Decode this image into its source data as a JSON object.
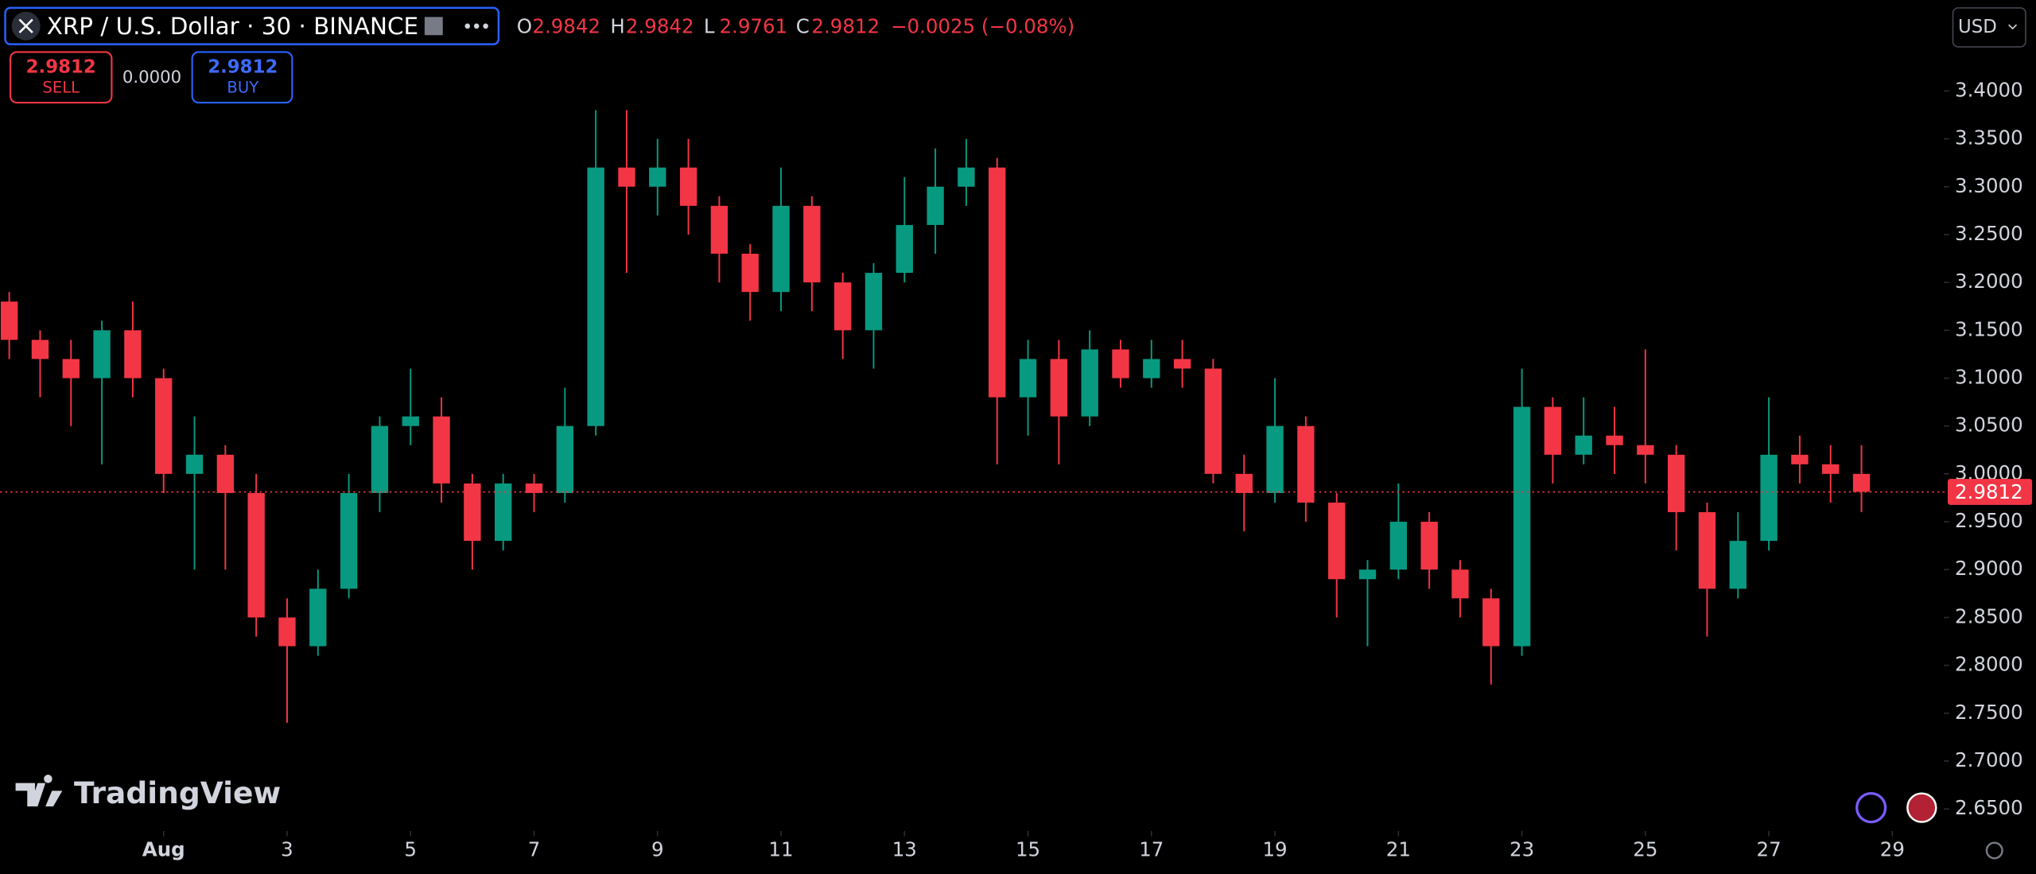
{
  "header": {
    "symbol": "XRP / U.S. Dollar · 30 · BINANCE",
    "ohlc": [
      {
        "label": "O",
        "value": "2.9842"
      },
      {
        "label": "H",
        "value": "2.9842"
      },
      {
        "label": "L",
        "value": "2.9761"
      },
      {
        "label": "C",
        "value": "2.9812"
      }
    ],
    "change": "−0.0025 (−0.08%)",
    "currency": "USD"
  },
  "trade_panel": {
    "sell_price": "2.9812",
    "sell_label": "SELL",
    "spread": "0.0000",
    "buy_price": "2.9812",
    "buy_label": "BUY"
  },
  "branding": "TradingView",
  "chart_data": {
    "type": "candlestick",
    "x": [
      -1.5,
      -1,
      -0.5,
      0,
      0.5,
      1,
      1.5,
      2,
      2.5,
      3,
      3.5,
      4,
      4.5,
      5,
      5.5,
      6,
      6.5,
      7,
      7.5,
      8,
      8.5,
      9,
      9.5,
      10,
      10.5,
      11,
      11.5,
      12,
      12.5,
      13,
      13.5,
      14,
      14.5,
      15,
      15.5,
      16,
      16.5,
      17,
      17.5,
      18,
      18.5,
      19,
      19.5,
      20,
      20.5,
      21,
      21.5,
      22,
      22.5,
      23,
      23.5,
      24,
      24.5,
      25,
      25.5,
      26,
      26.5,
      27,
      27.5,
      28,
      28.5
    ],
    "open": [
      3.18,
      3.14,
      3.12,
      3.1,
      3.15,
      3.1,
      3.0,
      3.02,
      2.98,
      2.85,
      2.82,
      2.88,
      2.98,
      3.05,
      3.06,
      2.99,
      2.93,
      2.99,
      2.98,
      3.05,
      3.32,
      3.3,
      3.32,
      3.28,
      3.23,
      3.19,
      3.28,
      3.2,
      3.15,
      3.21,
      3.26,
      3.3,
      3.32,
      3.08,
      3.12,
      3.06,
      3.13,
      3.1,
      3.12,
      3.11,
      3.0,
      2.98,
      3.05,
      2.97,
      2.89,
      2.9,
      2.95,
      2.9,
      2.87,
      2.82,
      3.07,
      3.02,
      3.04,
      3.03,
      3.02,
      2.96,
      2.88,
      2.93,
      3.02,
      3.01,
      3.0
    ],
    "high": [
      3.19,
      3.15,
      3.14,
      3.16,
      3.18,
      3.11,
      3.06,
      3.03,
      3.0,
      2.87,
      2.9,
      3.0,
      3.06,
      3.11,
      3.08,
      3.0,
      3.0,
      3.0,
      3.09,
      3.38,
      3.38,
      3.35,
      3.35,
      3.29,
      3.24,
      3.32,
      3.29,
      3.21,
      3.22,
      3.31,
      3.34,
      3.35,
      3.33,
      3.14,
      3.14,
      3.15,
      3.14,
      3.14,
      3.14,
      3.12,
      3.02,
      3.1,
      3.06,
      2.98,
      2.91,
      2.99,
      2.96,
      2.91,
      2.88,
      3.11,
      3.08,
      3.08,
      3.07,
      3.13,
      3.03,
      2.97,
      2.96,
      3.08,
      3.04,
      3.03,
      3.03
    ],
    "low": [
      3.12,
      3.08,
      3.05,
      3.01,
      3.08,
      2.98,
      2.9,
      2.9,
      2.83,
      2.74,
      2.81,
      2.87,
      2.96,
      3.03,
      2.97,
      2.9,
      2.92,
      2.96,
      2.97,
      3.04,
      3.21,
      3.27,
      3.25,
      3.2,
      3.16,
      3.17,
      3.17,
      3.12,
      3.11,
      3.2,
      3.23,
      3.28,
      3.01,
      3.04,
      3.01,
      3.05,
      3.09,
      3.09,
      3.09,
      2.99,
      2.94,
      2.97,
      2.95,
      2.85,
      2.82,
      2.89,
      2.88,
      2.85,
      2.78,
      2.81,
      2.99,
      3.01,
      3.0,
      2.99,
      2.92,
      2.83,
      2.87,
      2.92,
      2.99,
      2.97,
      2.96
    ],
    "close": [
      3.14,
      3.12,
      3.1,
      3.15,
      3.1,
      3.0,
      3.02,
      2.98,
      2.85,
      2.82,
      2.88,
      2.98,
      3.05,
      3.06,
      2.99,
      2.93,
      2.99,
      2.98,
      3.05,
      3.32,
      3.3,
      3.32,
      3.28,
      3.23,
      3.19,
      3.28,
      3.2,
      3.15,
      3.21,
      3.26,
      3.3,
      3.32,
      3.08,
      3.12,
      3.06,
      3.13,
      3.1,
      3.12,
      3.11,
      3.0,
      2.98,
      3.05,
      2.97,
      2.89,
      2.9,
      2.95,
      2.9,
      2.87,
      2.82,
      3.07,
      3.02,
      3.04,
      3.03,
      3.02,
      2.96,
      2.88,
      2.93,
      3.02,
      3.01,
      3.0,
      2.9812
    ],
    "up_color": "#089981",
    "down_color": "#f23645",
    "last_price": 2.9812,
    "last_price_color": "#f23645",
    "xlim": [
      -1.65,
      29.8
    ],
    "ylim": [
      2.63,
      3.44
    ],
    "xticks": [
      {
        "value": 1,
        "label": "Aug"
      },
      3,
      5,
      7,
      9,
      11,
      13,
      15,
      17,
      19,
      21,
      23,
      25,
      27,
      29
    ],
    "yticks": [
      {
        "value": 2.65,
        "label": "2.6500"
      },
      {
        "value": 2.7,
        "label": "2.7000"
      },
      {
        "value": 2.75,
        "label": "2.7500"
      },
      {
        "value": 2.8,
        "label": "2.8000"
      },
      {
        "value": 2.85,
        "label": "2.8500"
      },
      {
        "value": 2.9,
        "label": "2.9000"
      },
      {
        "value": 2.95,
        "label": "2.9500"
      },
      {
        "value": 3.0,
        "label": "3.0000"
      },
      {
        "value": 3.05,
        "label": "3.0500"
      },
      {
        "value": 3.1,
        "label": "3.1000"
      },
      {
        "value": 3.15,
        "label": "3.1500"
      },
      {
        "value": 3.2,
        "label": "3.2000"
      },
      {
        "value": 3.25,
        "label": "3.2500"
      },
      {
        "value": 3.3,
        "label": "3.3000"
      },
      {
        "value": 3.35,
        "label": "3.3500"
      },
      {
        "value": 3.4,
        "label": "3.4000"
      }
    ],
    "grid": false
  }
}
